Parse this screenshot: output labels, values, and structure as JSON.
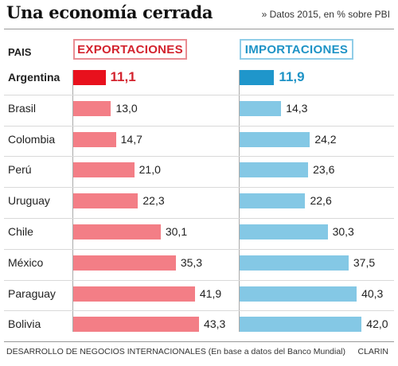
{
  "title": "Una economía cerrada",
  "subtitle": "» Datos 2015, en % sobre PBI",
  "column_header": "PAIS",
  "footer": "DESARROLLO DE NEGOCIOS INTERNACIONALES (En base a datos del Banco Mundial)",
  "credit": "CLARIN",
  "colors": {
    "export_bar": "#f37e86",
    "export_highlight": "#e8111d",
    "import_bar": "#84c8e5",
    "import_highlight": "#1f96cb"
  },
  "chart_data": {
    "type": "bar",
    "orientation": "horizontal",
    "categories": [
      "Argentina",
      "Brasil",
      "Colombia",
      "Perú",
      "Uruguay",
      "Chile",
      "México",
      "Paraguay",
      "Bolivia"
    ],
    "highlight": "Argentina",
    "series": [
      {
        "name": "EXPORTACIONES",
        "values": [
          11.1,
          13.0,
          14.7,
          21.0,
          22.3,
          30.1,
          35.3,
          41.9,
          43.3
        ],
        "labels": [
          "11,1",
          "13,0",
          "14,7",
          "21,0",
          "22,3",
          "30,1",
          "35,3",
          "41,9",
          "43,3"
        ]
      },
      {
        "name": "IMPORTACIONES",
        "values": [
          11.9,
          14.3,
          24.2,
          23.6,
          22.6,
          30.3,
          37.5,
          40.3,
          42.0
        ],
        "labels": [
          "11,9",
          "14,3",
          "24,2",
          "23,6",
          "22,6",
          "30,3",
          "37,5",
          "40,3",
          "42,0"
        ]
      }
    ]
  }
}
